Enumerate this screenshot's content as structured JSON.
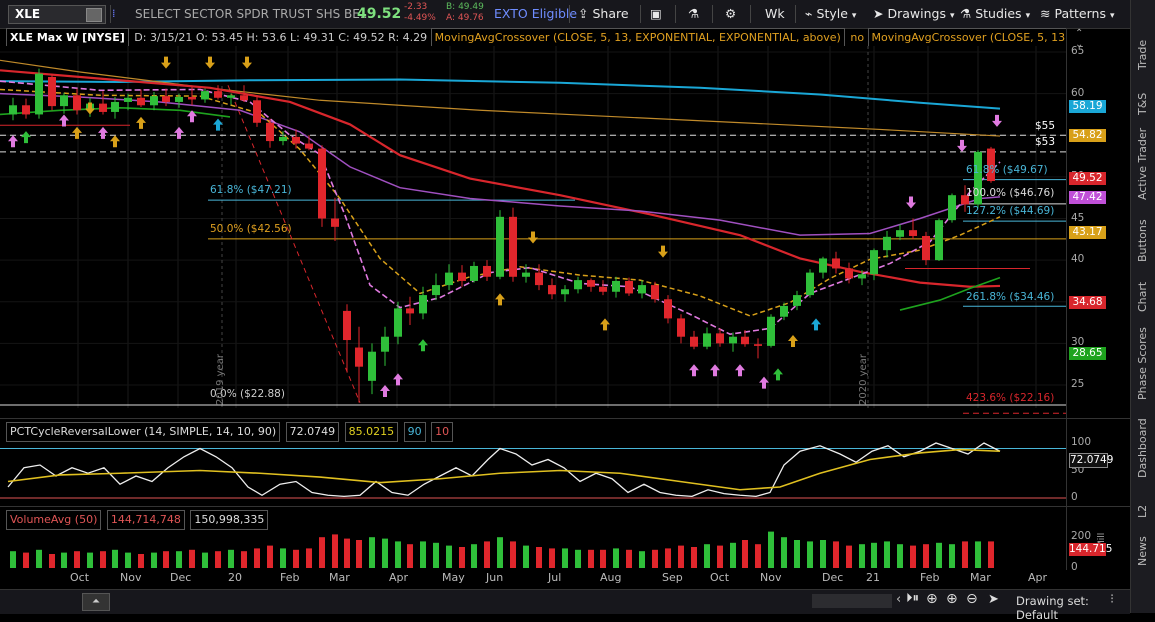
{
  "toolbar": {
    "symbol": "XLE",
    "description": "SELECT SECTOR SPDR TRUST SHS BE...",
    "last_price": "49.52",
    "net_change": "-2.33",
    "pct_change": "-4.49%",
    "bid": "B: 49.49",
    "ask": "A: 49.76",
    "exto": "EXTO Eligible",
    "share": "Share",
    "timeframe": "Wk",
    "style": "Style",
    "drawings": "Drawings",
    "studies": "Studies",
    "patterns": "Patterns"
  },
  "chart_header": {
    "title": "XLE Max W [NYSE]",
    "ohlc": "D: 3/15/21  O: 53.45  H: 53.6  L: 49.31  C: 49.52  R: 4.29",
    "study1": "MovingAvgCrossover (CLOSE, 5, 13, EXPONENTIAL, EXPONENTIAL, above)",
    "study1_flag": "no",
    "study2": "MovingAvgCrossover (CLOSE, 5, 13,..."
  },
  "price_axis": {
    "ticks": [
      "65",
      "60",
      "55",
      "50",
      "45",
      "40",
      "35",
      "30",
      "25"
    ],
    "boxes": [
      {
        "label": "58.19",
        "color": "#1aa7d6"
      },
      {
        "label": "54.82",
        "color": "#d8a019"
      },
      {
        "label": "49.52",
        "color": "#d8262c"
      },
      {
        "label": "47.42",
        "color": "#c050d8"
      },
      {
        "label": "43.17",
        "color": "#d8a019"
      },
      {
        "label": "34.68",
        "color": "#d8262c"
      },
      {
        "label": "28.65",
        "color": "#1ea31e"
      }
    ]
  },
  "annotations": {
    "fib618_left": "61.8% ($47.21)",
    "fib50_left": "50.0% ($42.56)",
    "fib0_left": "0.0% ($22.88)",
    "fib618_right": "61.8% ($49.67)",
    "fib100_right": "100.0% ($46.76)",
    "fib127_right": "127.2% ($44.69)",
    "fib2618_right": "261.8% ($34.46)",
    "fib4236_right": "423.6% ($22.16)",
    "level55": "$55",
    "level53": "$53",
    "year2019": "2019 year",
    "year2020": "2020 year"
  },
  "oscillator": {
    "name": "PCTCycleReversalLower (14, SIMPLE, 14, 10, 90)",
    "v1": "72.0749",
    "v2": "85.0215",
    "v3": "90",
    "v4": "10",
    "ticks": [
      "100",
      "50",
      "0"
    ],
    "box": "72.0749"
  },
  "volume": {
    "name": "VolumeAvg (50)",
    "v1": "144,714,748",
    "v2": "150,998,335",
    "ticks": [
      "200",
      "100",
      "0"
    ],
    "unit": "Mill",
    "box": "144.715"
  },
  "months": [
    "Oct",
    "Nov",
    "Dec",
    "20",
    "Feb",
    "Mar",
    "Apr",
    "May",
    "Jun",
    "Jul",
    "Aug",
    "Sep",
    "Oct",
    "Nov",
    "Dec",
    "21",
    "Feb",
    "Mar",
    "Apr"
  ],
  "sidebar": [
    "Trade",
    "T&S",
    "Active Trader",
    "Buttons",
    "Chart",
    "Phase Scores",
    "Dashboard",
    "L2",
    "News"
  ],
  "bottombar": {
    "drawing_set": "Drawing set: Default"
  }
}
